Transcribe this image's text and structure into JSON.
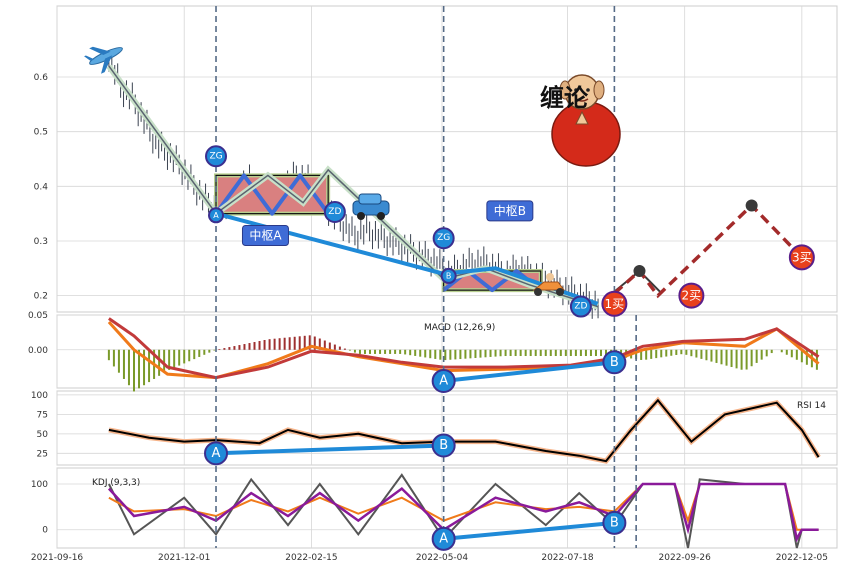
{
  "chart_data": {
    "type": "line",
    "x_ticks": [
      "2021-09-16",
      "2021-12-01",
      "2022-02-15",
      "2022-05-04",
      "2022-07-18",
      "2022-09-26",
      "2022-12-05"
    ],
    "panels": {
      "price": {
        "y_ticks": [
          0.2,
          0.3,
          0.4,
          0.5,
          0.6
        ],
        "ylim": [
          0.17,
          0.73
        ],
        "price_series": [
          [
            "2021-10-17",
            0.64
          ],
          [
            "2021-10-24",
            0.58
          ],
          [
            "2021-10-31",
            0.56
          ],
          [
            "2021-11-07",
            0.52
          ],
          [
            "2021-11-14",
            0.48
          ],
          [
            "2021-11-21",
            0.46
          ],
          [
            "2021-11-28",
            0.44
          ],
          [
            "2021-12-05",
            0.41
          ],
          [
            "2021-12-12",
            0.38
          ],
          [
            "2021-12-19",
            0.36
          ],
          [
            "2021-12-26",
            0.37
          ],
          [
            "2022-01-02",
            0.4
          ],
          [
            "2022-01-09",
            0.41
          ],
          [
            "2022-01-16",
            0.39
          ],
          [
            "2022-01-23",
            0.38
          ],
          [
            "2022-01-30",
            0.4
          ],
          [
            "2022-02-06",
            0.42
          ],
          [
            "2022-02-13",
            0.41
          ],
          [
            "2022-02-20",
            0.38
          ],
          [
            "2022-02-27",
            0.35
          ],
          [
            "2022-03-06",
            0.33
          ],
          [
            "2022-03-13",
            0.31
          ],
          [
            "2022-03-20",
            0.32
          ],
          [
            "2022-03-27",
            0.31
          ],
          [
            "2022-04-03",
            0.3
          ],
          [
            "2022-04-10",
            0.29
          ],
          [
            "2022-04-17",
            0.28
          ],
          [
            "2022-04-24",
            0.27
          ],
          [
            "2022-05-01",
            0.26
          ],
          [
            "2022-05-08",
            0.24
          ],
          [
            "2022-05-15",
            0.25
          ],
          [
            "2022-05-22",
            0.26
          ],
          [
            "2022-05-29",
            0.26
          ],
          [
            "2022-06-05",
            0.25
          ],
          [
            "2022-06-12",
            0.24
          ],
          [
            "2022-06-19",
            0.25
          ],
          [
            "2022-06-26",
            0.24
          ],
          [
            "2022-07-03",
            0.23
          ],
          [
            "2022-07-10",
            0.22
          ],
          [
            "2022-07-17",
            0.21
          ],
          [
            "2022-07-24",
            0.2
          ],
          [
            "2022-07-31",
            0.19
          ],
          [
            "2022-08-07",
            0.18
          ]
        ],
        "bi_line": [
          [
            "2021-10-17",
            0.62
          ],
          [
            "2021-12-20",
            0.35
          ],
          [
            "2022-01-20",
            0.42
          ],
          [
            "2022-02-10",
            0.37
          ],
          [
            "2022-02-25",
            0.43
          ],
          [
            "2022-05-05",
            0.23
          ],
          [
            "2022-05-30",
            0.25
          ],
          [
            "2022-06-25",
            0.22
          ],
          [
            "2022-08-05",
            0.18
          ]
        ],
        "segment_line": [
          [
            "2021-12-20",
            0.35
          ],
          [
            "2022-05-05",
            0.24
          ],
          [
            "2022-06-05",
            0.25
          ],
          [
            "2022-08-05",
            0.185
          ]
        ],
        "forecast_dark": [
          [
            "2022-08-08",
            0.19
          ],
          [
            "2022-08-30",
            0.245
          ],
          [
            "2022-09-12",
            0.205
          ]
        ],
        "forecast_red": [
          [
            "2022-08-08",
            0.185
          ],
          [
            "2022-08-30",
            0.245
          ],
          [
            "2022-09-10",
            0.2
          ],
          [
            "2022-11-05",
            0.365
          ],
          [
            "2022-12-05",
            0.27
          ]
        ],
        "forecast_points": [
          [
            "2022-08-30",
            0.245
          ],
          [
            "2022-11-05",
            0.365
          ]
        ],
        "zhongshu": [
          {
            "label": "中枢A",
            "x0": "2021-12-20",
            "x1": "2022-02-25",
            "zg": 0.42,
            "zd": 0.35,
            "mark_label": "A",
            "mark": [
              "2021-12-20",
              0.347
            ],
            "label_pos": [
              "2022-01-06",
              0.31
            ]
          },
          {
            "label": "中枢B",
            "x0": "2022-05-05",
            "x1": "2022-07-02",
            "zg": 0.245,
            "zd": 0.21,
            "mark_label": "B",
            "mark": [
              "2022-05-08",
              0.236
            ],
            "label_pos": [
              "2022-06-01",
              0.355
            ]
          }
        ],
        "zg_label": "ZG",
        "zd_label": "ZD",
        "zg_zd_markers": [
          {
            "label": "ZG",
            "x": "2021-12-20",
            "y": 0.455
          },
          {
            "label": "ZD",
            "x": "2022-03-01",
            "y": 0.353
          },
          {
            "label": "ZG",
            "x": "2022-05-05",
            "y": 0.305
          },
          {
            "label": "ZD",
            "x": "2022-07-26",
            "y": 0.18
          }
        ],
        "buy_points": [
          {
            "label": "1买",
            "x": "2022-08-15",
            "y": 0.185
          },
          {
            "label": "2买",
            "x": "2022-09-30",
            "y": 0.2
          },
          {
            "label": "3买",
            "x": "2022-12-05",
            "y": 0.27
          }
        ],
        "logo_text": "缠论"
      },
      "macd": {
        "label": "MACD (12,26,9)",
        "y_ticks": [
          0.0,
          0.05
        ],
        "y_tick_labels": [
          "0.00",
          "0.05"
        ],
        "ylim": [
          -0.055,
          0.05
        ],
        "dif": [
          [
            "2021-10-17",
            0.04
          ],
          [
            "2021-11-01",
            0.0
          ],
          [
            "2021-11-21",
            -0.035
          ],
          [
            "2021-12-20",
            -0.04
          ],
          [
            "2022-01-20",
            -0.02
          ],
          [
            "2022-02-15",
            0.005
          ],
          [
            "2022-03-15",
            -0.01
          ],
          [
            "2022-04-10",
            -0.02
          ],
          [
            "2022-05-05",
            -0.03
          ],
          [
            "2022-06-10",
            -0.028
          ],
          [
            "2022-07-20",
            -0.025
          ],
          [
            "2022-08-15",
            -0.015
          ],
          [
            "2022-09-01",
            0.0
          ],
          [
            "2022-09-25",
            0.01
          ],
          [
            "2022-11-01",
            0.005
          ],
          [
            "2022-11-20",
            0.03
          ],
          [
            "2022-12-15",
            -0.02
          ]
        ],
        "dea": [
          [
            "2021-10-17",
            0.045
          ],
          [
            "2021-11-01",
            0.02
          ],
          [
            "2021-11-21",
            -0.025
          ],
          [
            "2021-12-20",
            -0.04
          ],
          [
            "2022-01-20",
            -0.025
          ],
          [
            "2022-02-15",
            -0.002
          ],
          [
            "2022-03-15",
            -0.008
          ],
          [
            "2022-04-10",
            -0.018
          ],
          [
            "2022-05-05",
            -0.025
          ],
          [
            "2022-06-10",
            -0.025
          ],
          [
            "2022-07-20",
            -0.022
          ],
          [
            "2022-08-15",
            -0.012
          ],
          [
            "2022-09-01",
            0.005
          ],
          [
            "2022-09-25",
            0.012
          ],
          [
            "2022-11-01",
            0.015
          ],
          [
            "2022-11-20",
            0.03
          ],
          [
            "2022-12-15",
            -0.01
          ]
        ],
        "markers": [
          {
            "label": "A",
            "x": "2022-05-05",
            "y": -0.045
          },
          {
            "label": "B",
            "x": "2022-08-15",
            "y": -0.018
          }
        ]
      },
      "rsi": {
        "label": "RSI 14",
        "y_ticks": [
          25,
          50,
          75,
          100
        ],
        "ylim": [
          10,
          105
        ],
        "rsi": [
          [
            "2021-10-17",
            55
          ],
          [
            "2021-11-10",
            45
          ],
          [
            "2021-12-01",
            40
          ],
          [
            "2021-12-20",
            42
          ],
          [
            "2022-01-15",
            38
          ],
          [
            "2022-02-01",
            55
          ],
          [
            "2022-02-20",
            45
          ],
          [
            "2022-03-15",
            50
          ],
          [
            "2022-04-10",
            38
          ],
          [
            "2022-05-05",
            40
          ],
          [
            "2022-06-05",
            40
          ],
          [
            "2022-07-05",
            28
          ],
          [
            "2022-07-25",
            22
          ],
          [
            "2022-08-10",
            15
          ],
          [
            "2022-08-25",
            55
          ],
          [
            "2022-09-10",
            93
          ],
          [
            "2022-09-30",
            40
          ],
          [
            "2022-10-20",
            75
          ],
          [
            "2022-11-20",
            90
          ],
          [
            "2022-12-05",
            55
          ],
          [
            "2022-12-15",
            20
          ]
        ],
        "markers": [
          {
            "label": "A",
            "x": "2021-12-20",
            "y": 25
          },
          {
            "label": "B",
            "x": "2022-05-05",
            "y": 35
          }
        ]
      },
      "kdj": {
        "label": "KDJ (9,3,3)",
        "y_ticks": [
          0,
          100
        ],
        "ylim": [
          -40,
          135
        ],
        "k": [
          [
            "2021-10-17",
            90
          ],
          [
            "2021-11-01",
            30
          ],
          [
            "2021-12-01",
            50
          ],
          [
            "2021-12-20",
            20
          ],
          [
            "2022-01-10",
            80
          ],
          [
            "2022-02-01",
            30
          ],
          [
            "2022-02-20",
            80
          ],
          [
            "2022-03-15",
            20
          ],
          [
            "2022-04-10",
            90
          ],
          [
            "2022-05-05",
            0
          ],
          [
            "2022-06-05",
            70
          ],
          [
            "2022-07-05",
            40
          ],
          [
            "2022-07-25",
            60
          ],
          [
            "2022-08-15",
            30
          ],
          [
            "2022-09-01",
            100
          ],
          [
            "2022-09-20",
            100
          ],
          [
            "2022-09-28",
            0
          ],
          [
            "2022-10-05",
            100
          ],
          [
            "2022-11-01",
            100
          ],
          [
            "2022-11-25",
            100
          ],
          [
            "2022-12-02",
            -20
          ],
          [
            "2022-12-05",
            0
          ],
          [
            "2022-12-15",
            0
          ]
        ],
        "d": [
          [
            "2021-10-17",
            70
          ],
          [
            "2021-11-01",
            40
          ],
          [
            "2021-12-01",
            45
          ],
          [
            "2021-12-20",
            30
          ],
          [
            "2022-01-10",
            65
          ],
          [
            "2022-02-01",
            40
          ],
          [
            "2022-02-20",
            70
          ],
          [
            "2022-03-15",
            35
          ],
          [
            "2022-04-10",
            70
          ],
          [
            "2022-05-05",
            20
          ],
          [
            "2022-06-05",
            60
          ],
          [
            "2022-07-05",
            45
          ],
          [
            "2022-07-25",
            50
          ],
          [
            "2022-08-15",
            40
          ],
          [
            "2022-09-01",
            100
          ],
          [
            "2022-09-20",
            100
          ],
          [
            "2022-09-28",
            20
          ],
          [
            "2022-10-05",
            100
          ],
          [
            "2022-11-01",
            100
          ],
          [
            "2022-11-25",
            100
          ],
          [
            "2022-12-02",
            0
          ],
          [
            "2022-12-05",
            0
          ],
          [
            "2022-12-15",
            0
          ]
        ],
        "j": [
          [
            "2021-10-17",
            100
          ],
          [
            "2021-11-01",
            -10
          ],
          [
            "2021-12-01",
            70
          ],
          [
            "2021-12-20",
            -10
          ],
          [
            "2022-01-10",
            110
          ],
          [
            "2022-02-01",
            10
          ],
          [
            "2022-02-20",
            100
          ],
          [
            "2022-03-15",
            -10
          ],
          [
            "2022-04-10",
            120
          ],
          [
            "2022-05-05",
            -20
          ],
          [
            "2022-06-05",
            100
          ],
          [
            "2022-07-05",
            10
          ],
          [
            "2022-07-25",
            80
          ],
          [
            "2022-08-15",
            10
          ],
          [
            "2022-09-01",
            100
          ],
          [
            "2022-09-20",
            100
          ],
          [
            "2022-09-28",
            -40
          ],
          [
            "2022-10-05",
            110
          ],
          [
            "2022-11-01",
            100
          ],
          [
            "2022-11-25",
            100
          ],
          [
            "2022-12-02",
            -40
          ],
          [
            "2022-12-05",
            0
          ],
          [
            "2022-12-15",
            0
          ]
        ],
        "markers": [
          {
            "label": "A",
            "x": "2022-05-05",
            "y": -20
          },
          {
            "label": "B",
            "x": "2022-08-15",
            "y": 15
          }
        ]
      },
      "divergence_label_a": "A",
      "divergence_label_b": "B",
      "vlines": [
        "2021-12-20",
        "2022-05-05",
        "2022-08-15"
      ],
      "forecast_start": "2022-08-28"
    },
    "colors": {
      "grid": "#d6d6d6",
      "bi": "#5a6470",
      "bi_glow": "#c8e0c8",
      "segment": "#1f8ad8",
      "zhongshu_fill": "#d98080",
      "zhongshu_border": "#b8d090",
      "zhongshu_edge": "#111111",
      "zigzag": "#3f6cd6",
      "label_box": "#3f6cd6",
      "buy_point": "#e8401c",
      "buy_ring": "#5a1f8a",
      "marker": "#1f8ad8",
      "marker_ring": "#3b2f8f",
      "forecast_red": "#a32b2b",
      "forecast_dark": "#3a3a3a",
      "vline": "#556a86",
      "macd_dif": "#f07a1a",
      "macd_dea": "#c23a3a",
      "hist_pos": "#9e3030",
      "hist_neg": "#7a9a2a",
      "rsi_line": "#000000",
      "rsi_glow": "#f6b48a",
      "kdj_k": "#8a1a9a",
      "kdj_d": "#f07a1a",
      "kdj_j": "#555555",
      "monk_robe": "#d42a1a",
      "monk_face": "#f0c89a"
    }
  }
}
